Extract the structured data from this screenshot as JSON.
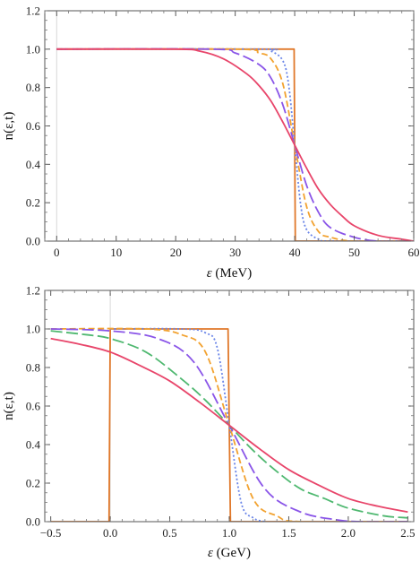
{
  "chart_data": [
    {
      "type": "line",
      "xlabel_symbol": "ε",
      "xlabel_unit": "(MeV)",
      "ylabel": "n(ε,t)",
      "xlim": [
        -2,
        60
      ],
      "ylim": [
        0,
        1.2
      ],
      "x_ticks": [
        "0",
        "10",
        "20",
        "30",
        "40",
        "50",
        "60"
      ],
      "y_ticks": [
        "0.0",
        "0.2",
        "0.4",
        "0.6",
        "0.8",
        "1.0",
        "1.2"
      ],
      "grid": false,
      "vertical_reference_line_x": 0,
      "series": [
        {
          "style": "step",
          "color": "#e0782a",
          "points": [
            [
              0,
              1.0
            ],
            [
              39.9,
              1.0
            ],
            [
              40,
              0.5
            ],
            [
              40.1,
              0.0
            ],
            [
              60,
              0.0
            ]
          ]
        },
        {
          "style": "dotted",
          "color": "#6b86e8",
          "points": [
            [
              0,
              1.0
            ],
            [
              34,
              1.0
            ],
            [
              36,
              0.99
            ],
            [
              38,
              0.94
            ],
            [
              39,
              0.81
            ],
            [
              40,
              0.5
            ],
            [
              41,
              0.19
            ],
            [
              42,
              0.06
            ],
            [
              44,
              0.01
            ],
            [
              46,
              0.0
            ],
            [
              60,
              0.0
            ]
          ]
        },
        {
          "style": "dashed",
          "color": "#f2a230",
          "points": [
            [
              0,
              1.0
            ],
            [
              30,
              1.0
            ],
            [
              34,
              0.98
            ],
            [
              36,
              0.95
            ],
            [
              38,
              0.82
            ],
            [
              40,
              0.5
            ],
            [
              42,
              0.18
            ],
            [
              44,
              0.05
            ],
            [
              46,
              0.02
            ],
            [
              50,
              0.0
            ],
            [
              60,
              0.0
            ]
          ]
        },
        {
          "style": "long-dash",
          "color": "#8a55e8",
          "points": [
            [
              0,
              1.0
            ],
            [
              26,
              1.0
            ],
            [
              30,
              0.98
            ],
            [
              34,
              0.92
            ],
            [
              36,
              0.85
            ],
            [
              38,
              0.71
            ],
            [
              40,
              0.5
            ],
            [
              42,
              0.29
            ],
            [
              44,
              0.15
            ],
            [
              46,
              0.07
            ],
            [
              50,
              0.02
            ],
            [
              54,
              0.0
            ],
            [
              60,
              0.0
            ]
          ]
        },
        {
          "style": "solid",
          "color": "#e8456a",
          "points": [
            [
              0,
              1.0
            ],
            [
              20,
              1.0
            ],
            [
              24,
              0.99
            ],
            [
              28,
              0.95
            ],
            [
              32,
              0.87
            ],
            [
              34,
              0.81
            ],
            [
              36,
              0.73
            ],
            [
              38,
              0.62
            ],
            [
              40,
              0.5
            ],
            [
              42,
              0.38
            ],
            [
              44,
              0.27
            ],
            [
              46,
              0.19
            ],
            [
              48,
              0.13
            ],
            [
              50,
              0.08
            ],
            [
              54,
              0.03
            ],
            [
              58,
              0.01
            ],
            [
              60,
              0.0
            ]
          ]
        }
      ]
    },
    {
      "type": "line",
      "xlabel_symbol": "ε",
      "xlabel_unit": "(GeV)",
      "ylabel": "n(ε,t)",
      "xlim": [
        -0.55,
        2.55
      ],
      "ylim": [
        0,
        1.2
      ],
      "x_ticks": [
        "−0.5",
        "0.0",
        "0.5",
        "1.0",
        "1.5",
        "2.0",
        "2.5"
      ],
      "x_tick_values": [
        -0.5,
        0.0,
        0.5,
        1.0,
        1.5,
        2.0,
        2.5
      ],
      "y_ticks": [
        "0.0",
        "0.2",
        "0.4",
        "0.6",
        "0.8",
        "1.0",
        "1.2"
      ],
      "grid": false,
      "vertical_reference_line_x": 0,
      "series": [
        {
          "style": "step",
          "color": "#e0782a",
          "points": [
            [
              -0.5,
              0.0
            ],
            [
              -0.01,
              0.0
            ],
            [
              0,
              1.0
            ],
            [
              0.99,
              1.0
            ],
            [
              1.0,
              0.5
            ],
            [
              1.01,
              0.0
            ],
            [
              2.5,
              0.0
            ]
          ]
        },
        {
          "style": "dotted",
          "color": "#6b86e8",
          "points": [
            [
              0,
              1.0
            ],
            [
              0.6,
              1.0
            ],
            [
              0.8,
              0.98
            ],
            [
              0.9,
              0.9
            ],
            [
              1.0,
              0.5
            ],
            [
              1.1,
              0.1
            ],
            [
              1.2,
              0.02
            ],
            [
              1.3,
              0.0
            ]
          ]
        },
        {
          "style": "dashed",
          "color": "#f2a230",
          "points": [
            [
              -0.5,
              1.0
            ],
            [
              0.3,
              1.0
            ],
            [
              0.6,
              0.97
            ],
            [
              0.8,
              0.88
            ],
            [
              1.0,
              0.5
            ],
            [
              1.2,
              0.12
            ],
            [
              1.4,
              0.03
            ],
            [
              1.6,
              0.0
            ],
            [
              2.5,
              0.0
            ]
          ]
        },
        {
          "style": "long-dash",
          "color": "#8a55e8",
          "points": [
            [
              -0.5,
              1.0
            ],
            [
              0.0,
              0.99
            ],
            [
              0.4,
              0.95
            ],
            [
              0.7,
              0.83
            ],
            [
              1.0,
              0.5
            ],
            [
              1.3,
              0.17
            ],
            [
              1.6,
              0.05
            ],
            [
              1.9,
              0.01
            ],
            [
              2.1,
              0.0
            ],
            [
              2.5,
              0.0
            ]
          ]
        },
        {
          "style": "long-dash",
          "color": "#4fb870",
          "points": [
            [
              -0.5,
              0.99
            ],
            [
              -0.2,
              0.97
            ],
            [
              0.0,
              0.95
            ],
            [
              0.3,
              0.88
            ],
            [
              0.6,
              0.74
            ],
            [
              0.8,
              0.63
            ],
            [
              1.0,
              0.5
            ],
            [
              1.2,
              0.37
            ],
            [
              1.4,
              0.26
            ],
            [
              1.6,
              0.17
            ],
            [
              1.8,
              0.12
            ],
            [
              2.0,
              0.07
            ],
            [
              2.3,
              0.03
            ],
            [
              2.5,
              0.02
            ]
          ]
        },
        {
          "style": "solid",
          "color": "#e8456a",
          "points": [
            [
              -0.5,
              0.95
            ],
            [
              -0.25,
              0.92
            ],
            [
              0.0,
              0.88
            ],
            [
              0.25,
              0.81
            ],
            [
              0.5,
              0.73
            ],
            [
              0.75,
              0.62
            ],
            [
              1.0,
              0.5
            ],
            [
              1.25,
              0.38
            ],
            [
              1.5,
              0.27
            ],
            [
              1.75,
              0.19
            ],
            [
              2.0,
              0.12
            ],
            [
              2.25,
              0.08
            ],
            [
              2.5,
              0.05
            ]
          ]
        }
      ]
    }
  ]
}
